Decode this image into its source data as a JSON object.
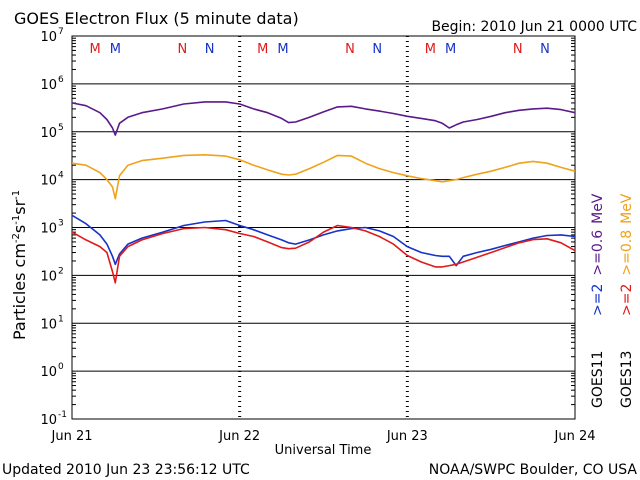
{
  "header": {
    "title": "GOES Electron Flux (5 minute data)",
    "begin": "Begin: 2010 Jun 21 0000 UTC"
  },
  "footer": {
    "updated": "Updated 2010 Jun 23 23:56:12 UTC",
    "credit": "NOAA/SWPC Boulder, CO USA"
  },
  "labels": {
    "y_prefix": "Particles cm",
    "y_exp1": "-2",
    "y_s": "s",
    "y_exp2": "-1",
    "y_sr": "sr",
    "y_exp3": "-1",
    "x_title": "Universal Time",
    "goes11": "GOES11",
    "goes13": "GOES13",
    "g11_ch1": ">=2",
    "g11_ch2": ">=0.6",
    "g11_unit": "MeV",
    "g13_ch1": ">=2",
    "g13_ch2": ">=0.8",
    "g13_unit": "MeV"
  },
  "colors": {
    "goes11_ge2": "#1633c8",
    "goes13_ge2": "#e01a1a",
    "goes11_ge06": "#5a1a8a",
    "goes13_ge08": "#f0a21a"
  },
  "chart_data": {
    "type": "line",
    "y_scale": "log",
    "ylim": [
      0.1,
      10000000
    ],
    "xlim": [
      0,
      72
    ],
    "x_unit": "hours since 2010 Jun 21 0000 UTC",
    "x_ticks": [
      {
        "x": 0,
        "label": "Jun 21"
      },
      {
        "x": 24,
        "label": "Jun 22"
      },
      {
        "x": 48,
        "label": "Jun 23"
      },
      {
        "x": 72,
        "label": "Jun 24"
      }
    ],
    "y_ticks": [
      {
        "exp": "7"
      },
      {
        "exp": "6"
      },
      {
        "exp": "5"
      },
      {
        "exp": "4"
      },
      {
        "exp": "3"
      },
      {
        "exp": "2"
      },
      {
        "exp": "1"
      },
      {
        "exp": "0"
      },
      {
        "exp": "-1"
      }
    ],
    "threshold": 1000,
    "markers": [
      {
        "x": 3.3,
        "label": "M",
        "color": "#e01a1a"
      },
      {
        "x": 6.2,
        "label": "M",
        "color": "#1633c8"
      },
      {
        "x": 15.8,
        "label": "N",
        "color": "#e01a1a"
      },
      {
        "x": 19.7,
        "label": "N",
        "color": "#1633c8"
      },
      {
        "x": 27.3,
        "label": "M",
        "color": "#e01a1a"
      },
      {
        "x": 30.2,
        "label": "M",
        "color": "#1633c8"
      },
      {
        "x": 39.8,
        "label": "N",
        "color": "#e01a1a"
      },
      {
        "x": 43.7,
        "label": "N",
        "color": "#1633c8"
      },
      {
        "x": 51.3,
        "label": "M",
        "color": "#e01a1a"
      },
      {
        "x": 54.2,
        "label": "M",
        "color": "#1633c8"
      },
      {
        "x": 63.8,
        "label": "N",
        "color": "#e01a1a"
      },
      {
        "x": 67.7,
        "label": "N",
        "color": "#1633c8"
      }
    ],
    "series": [
      {
        "key": "g11_ge06",
        "color": "#5a1a8a",
        "x": [
          0,
          2,
          4,
          5,
          5.8,
          6.2,
          6.8,
          8,
          10,
          13,
          16,
          19,
          22,
          24,
          26,
          28,
          30,
          31,
          32,
          34,
          36,
          38,
          40,
          42,
          44,
          46,
          48,
          50,
          52,
          53,
          54,
          55,
          56,
          58,
          60,
          62,
          64,
          66,
          68,
          70,
          72
        ],
        "y": [
          400000,
          350000,
          250000,
          180000,
          120000,
          85000,
          150000,
          200000,
          250000,
          300000,
          380000,
          420000,
          420000,
          380000,
          300000,
          250000,
          190000,
          155000,
          160000,
          200000,
          260000,
          330000,
          340000,
          300000,
          270000,
          240000,
          210000,
          190000,
          170000,
          150000,
          120000,
          140000,
          160000,
          180000,
          210000,
          250000,
          280000,
          300000,
          310000,
          290000,
          250000
        ]
      },
      {
        "key": "g13_ge08",
        "color": "#f0a21a",
        "x": [
          0,
          2,
          4,
          5,
          5.8,
          6.2,
          6.8,
          8,
          10,
          13,
          16,
          19,
          22,
          24,
          26,
          28,
          30,
          31,
          32,
          34,
          36,
          38,
          40,
          42,
          44,
          46,
          48,
          50,
          52,
          53,
          54,
          55,
          56,
          58,
          60,
          62,
          64,
          66,
          68,
          70,
          72
        ],
        "y": [
          22000,
          20000,
          14000,
          10000,
          7000,
          4000,
          12000,
          20000,
          25000,
          28000,
          32000,
          33000,
          31000,
          26000,
          20000,
          16000,
          13000,
          12500,
          13000,
          17000,
          23000,
          32000,
          31000,
          22000,
          17000,
          14000,
          12000,
          10500,
          9500,
          9000,
          9500,
          10000,
          11000,
          13000,
          15000,
          18000,
          22000,
          24000,
          22000,
          18000,
          15000
        ]
      },
      {
        "key": "g11_ge2",
        "color": "#1633c8",
        "x": [
          0,
          2,
          4,
          5,
          5.8,
          6.2,
          6.8,
          8,
          10,
          13,
          16,
          19,
          22,
          24,
          26,
          28,
          30,
          31,
          32,
          34,
          36,
          38,
          40,
          42,
          44,
          46,
          48,
          50,
          52,
          53,
          54,
          55,
          56,
          58,
          60,
          62,
          64,
          66,
          68,
          70,
          72
        ],
        "y": [
          1800,
          1200,
          700,
          450,
          250,
          170,
          280,
          450,
          600,
          800,
          1100,
          1300,
          1400,
          1100,
          900,
          700,
          550,
          480,
          450,
          550,
          700,
          850,
          950,
          1000,
          850,
          650,
          400,
          300,
          260,
          250,
          250,
          160,
          250,
          300,
          350,
          420,
          500,
          600,
          680,
          700,
          650
        ]
      },
      {
        "key": "g13_ge2",
        "color": "#e01a1a",
        "x": [
          0,
          2,
          4,
          5,
          5.8,
          6.2,
          6.8,
          8,
          10,
          13,
          16,
          19,
          22,
          24,
          26,
          28,
          30,
          31,
          32,
          34,
          36,
          38,
          40,
          42,
          44,
          46,
          48,
          50,
          52,
          53,
          54,
          55,
          56,
          58,
          60,
          62,
          64,
          66,
          68,
          70,
          72
        ],
        "y": [
          800,
          550,
          400,
          300,
          120,
          70,
          250,
          400,
          550,
          750,
          950,
          1000,
          900,
          750,
          650,
          500,
          380,
          360,
          370,
          500,
          800,
          1100,
          1000,
          850,
          650,
          450,
          260,
          190,
          150,
          150,
          160,
          170,
          190,
          240,
          300,
          380,
          480,
          560,
          580,
          480,
          330
        ]
      }
    ]
  }
}
